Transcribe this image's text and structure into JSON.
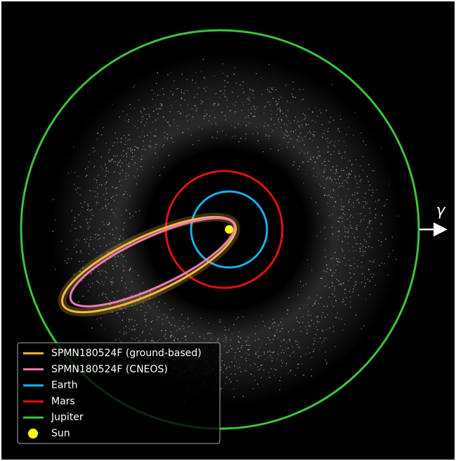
{
  "direction_label": "γ",
  "legend": [
    {
      "label": "SPMN180524F (ground-based)",
      "color": "#f5b942",
      "kind": "line"
    },
    {
      "label": "SPMN180524F (CNEOS)",
      "color": "#f07ab8",
      "kind": "line"
    },
    {
      "label": "Earth",
      "color": "#1ab0e8",
      "kind": "line"
    },
    {
      "label": "Mars",
      "color": "#e01010",
      "kind": "line"
    },
    {
      "label": "Jupiter",
      "color": "#3cc43c",
      "kind": "line"
    },
    {
      "label": "Sun",
      "color": "#ffff00",
      "kind": "dot"
    }
  ]
}
